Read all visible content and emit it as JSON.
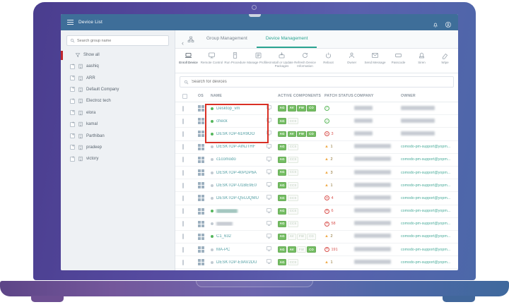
{
  "app": {
    "title": "Device List"
  },
  "colors": {
    "accent_teal": "#2aa491",
    "topbar_blue": "#3e6e99",
    "badge_green": "#74bd63",
    "online_green": "#54b65c",
    "warn_orange": "#f0ad4e",
    "danger_red": "#d9534f",
    "annotation_red": "#d93025"
  },
  "sidebar": {
    "search_placeholder": "Search group name",
    "show_all_label": "Show all",
    "groups": [
      "aashiq",
      "ARR",
      "Default Company",
      "Electroz tech",
      "elora",
      "kamal",
      "Parthiban",
      "pradeep",
      "victory"
    ]
  },
  "tabs": [
    {
      "label": "Group Management",
      "active": false
    },
    {
      "label": "Device Management",
      "active": true
    }
  ],
  "toolbar": [
    {
      "label": "Enroll Device",
      "icon": "enroll-device-icon",
      "active": true
    },
    {
      "label": "Remote Control",
      "icon": "remote-control-icon",
      "active": false
    },
    {
      "label": "Run Procedure",
      "icon": "run-procedure-icon",
      "active": false
    },
    {
      "label": "Manage Profiles",
      "icon": "manage-profiles-icon",
      "active": false
    },
    {
      "label": "Install or Update Packages",
      "icon": "install-packages-icon",
      "active": false
    },
    {
      "label": "Refresh Device Information",
      "icon": "refresh-device-icon",
      "active": false
    },
    {
      "label": "Reboot",
      "icon": "reboot-icon",
      "active": false
    },
    {
      "label": "Owner",
      "icon": "owner-icon",
      "active": false
    },
    {
      "label": "Send Message",
      "icon": "send-message-icon",
      "active": false
    },
    {
      "label": "Passcode",
      "icon": "passcode-icon",
      "active": false
    },
    {
      "label": "Siren",
      "icon": "siren-icon",
      "active": false
    },
    {
      "label": "Wipe",
      "icon": "wipe-icon",
      "active": false
    }
  ],
  "device_search": {
    "placeholder": "Search for devices"
  },
  "table": {
    "columns": [
      "OS",
      "NAME",
      "ACTIVE COMPONENTS",
      "PATCH STATUS",
      "COMPANY",
      "OWNER"
    ],
    "owner_link_text": "comodo-pm-support@yopm...",
    "rows": [
      {
        "name": "Desktop_vm",
        "online": true,
        "components": [
          {
            "l": "AG",
            "on": true
          },
          {
            "l": "AV",
            "on": true
          },
          {
            "l": "FW",
            "on": true
          },
          {
            "l": "CO",
            "on": true
          }
        ],
        "patch": {
          "t": "ok",
          "n": ""
        },
        "company_blur_w": 26,
        "owner_blur": true
      },
      {
        "name": "check",
        "online": true,
        "components": [
          {
            "l": "AG",
            "on": true
          },
          {
            "l": "CCS",
            "on": false
          }
        ],
        "patch": {
          "t": "ok",
          "n": ""
        },
        "company_blur_w": 26,
        "owner_blur": true
      },
      {
        "name": "DESKTOP-61R9OO",
        "online": true,
        "components": [
          {
            "l": "AG",
            "on": true
          },
          {
            "l": "AV",
            "on": true
          },
          {
            "l": "FW",
            "on": true
          },
          {
            "l": "CO",
            "on": true
          }
        ],
        "patch": {
          "t": "crit",
          "n": "3"
        },
        "company_blur_w": 26,
        "owner_blur": true
      },
      {
        "name": "DESKTOP-AINJTHF",
        "online": false,
        "components": [
          {
            "l": "AG",
            "on": true
          },
          {
            "l": "CCS",
            "on": false
          }
        ],
        "patch": {
          "t": "warn",
          "n": "1"
        },
        "company_blur_w": 52,
        "owner_blur": false
      },
      {
        "name": "c1comodo",
        "online": false,
        "components": [
          {
            "l": "AG",
            "on": true
          },
          {
            "l": "CCS",
            "on": false
          }
        ],
        "patch": {
          "t": "warn",
          "n": "2"
        },
        "company_blur_w": 52,
        "owner_blur": false
      },
      {
        "name": "DESKTOP-40PDP6A",
        "online": false,
        "components": [
          {
            "l": "AG",
            "on": true
          },
          {
            "l": "CCS",
            "on": false
          }
        ],
        "patch": {
          "t": "warn",
          "n": "3"
        },
        "company_blur_w": 52,
        "owner_blur": false
      },
      {
        "name": "DESKTOP-U1BE9E0",
        "online": false,
        "components": [
          {
            "l": "AG",
            "on": true
          },
          {
            "l": "CCS",
            "on": false
          }
        ],
        "patch": {
          "t": "warn",
          "n": "1"
        },
        "company_blur_w": 52,
        "owner_blur": false
      },
      {
        "name": "DESKTOP-Q5UJQMU",
        "online": false,
        "components": [
          {
            "l": "AG",
            "on": true
          },
          {
            "l": "CCS",
            "on": false
          }
        ],
        "patch": {
          "t": "crit",
          "n": "4"
        },
        "company_blur_w": 52,
        "owner_blur": false
      },
      {
        "name": "",
        "name_blur": "teal",
        "name_blur_w": 30,
        "online": true,
        "components": [
          {
            "l": "AG",
            "on": true
          },
          {
            "l": "CCS",
            "on": false
          }
        ],
        "patch": {
          "t": "crit",
          "n": "6"
        },
        "company_blur_w": 52,
        "owner_blur": false
      },
      {
        "name": "",
        "name_blur": "gray",
        "name_blur_w": 23,
        "online": false,
        "components": [
          {
            "l": "AG",
            "on": true
          },
          {
            "l": "CCS",
            "on": false
          }
        ],
        "patch": {
          "t": "crit",
          "n": "58"
        },
        "company_blur_w": 52,
        "owner_blur": false
      },
      {
        "name": "C1_632",
        "online": true,
        "components": [
          {
            "l": "AG",
            "on": true
          },
          {
            "l": "AV",
            "on": false
          },
          {
            "l": "FW",
            "on": false
          },
          {
            "l": "CO",
            "on": false
          }
        ],
        "patch": {
          "t": "warn",
          "n": "2"
        },
        "company_blur_w": 52,
        "owner_blur": false
      },
      {
        "name": "MA-PC",
        "online": false,
        "components": [
          {
            "l": "AG",
            "on": true
          },
          {
            "l": "AV",
            "on": true
          },
          {
            "l": "FW",
            "on": false
          },
          {
            "l": "CO",
            "on": true
          }
        ],
        "patch": {
          "t": "crit",
          "n": "191"
        },
        "company_blur_w": 52,
        "owner_blur": false
      },
      {
        "name": "DESKTOP-E9AV2DU",
        "online": false,
        "components": [
          {
            "l": "AG",
            "on": true
          },
          {
            "l": "CCS",
            "on": false
          }
        ],
        "patch": {
          "t": "warn",
          "n": "1"
        },
        "company_blur_w": 52,
        "owner_blur": false
      }
    ]
  }
}
